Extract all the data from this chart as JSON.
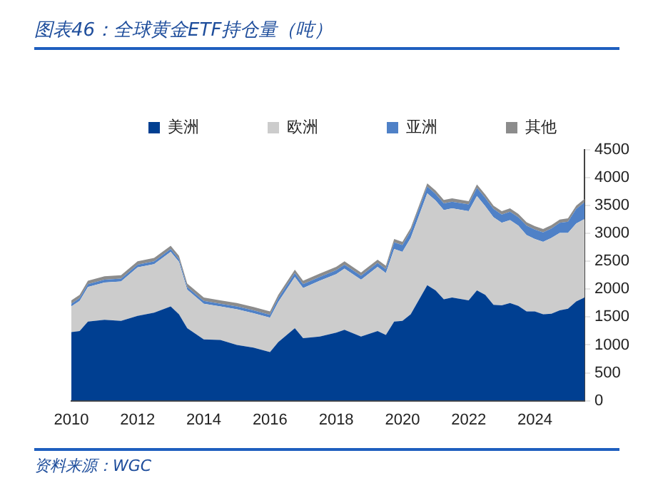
{
  "chart_data": {
    "type": "area",
    "title": "图表46：全球黄金ETF持仓量（吨）",
    "annotations": [
      "资料来源：WGC"
    ],
    "stacked": true,
    "legend": "top",
    "grid": false,
    "x": [
      2010,
      2010.25,
      2010.5,
      2011,
      2011.5,
      2012,
      2012.5,
      2013,
      2013.25,
      2013.5,
      2014,
      2014.5,
      2015,
      2015.5,
      2016,
      2016.25,
      2016.75,
      2017,
      2017.5,
      2018,
      2018.25,
      2018.75,
      2019.25,
      2019.5,
      2019.75,
      2020,
      2020.25,
      2020.75,
      2021,
      2021.25,
      2021.5,
      2022,
      2022.25,
      2022.5,
      2022.75,
      2023,
      2023.25,
      2023.5,
      2023.75,
      2024,
      2024.25,
      2024.5,
      2024.75,
      2025,
      2025.25,
      2025.5
    ],
    "series": [
      {
        "name": "美洲",
        "color": "#003f91",
        "values": [
          1230,
          1250,
          1420,
          1450,
          1430,
          1520,
          1580,
          1690,
          1550,
          1300,
          1100,
          1090,
          1000,
          950,
          870,
          1050,
          1300,
          1120,
          1150,
          1220,
          1270,
          1150,
          1250,
          1180,
          1420,
          1430,
          1550,
          2070,
          1980,
          1820,
          1850,
          1800,
          1980,
          1900,
          1720,
          1710,
          1750,
          1700,
          1600,
          1600,
          1550,
          1560,
          1620,
          1650,
          1780,
          1850
        ]
      },
      {
        "name": "欧洲",
        "color": "#cccccc",
        "values": [
          460,
          540,
          620,
          670,
          710,
          870,
          870,
          980,
          940,
          690,
          640,
          600,
          640,
          620,
          620,
          720,
          920,
          900,
          1000,
          1050,
          1100,
          1020,
          1150,
          1110,
          1300,
          1240,
          1370,
          1650,
          1610,
          1600,
          1600,
          1600,
          1690,
          1590,
          1570,
          1480,
          1490,
          1440,
          1370,
          1300,
          1300,
          1360,
          1390,
          1360,
          1400,
          1410
        ]
      },
      {
        "name": "亚洲",
        "color": "#4f81c7",
        "values": [
          50,
          50,
          50,
          50,
          50,
          50,
          50,
          50,
          50,
          50,
          50,
          50,
          50,
          50,
          50,
          70,
          70,
          70,
          70,
          70,
          70,
          70,
          70,
          70,
          120,
          120,
          120,
          120,
          120,
          120,
          120,
          120,
          150,
          150,
          150,
          150,
          150,
          150,
          170,
          170,
          170,
          170,
          180,
          200,
          260,
          300
        ]
      },
      {
        "name": "其他",
        "color": "#8c8c8c",
        "values": [
          60,
          60,
          60,
          60,
          60,
          60,
          60,
          60,
          60,
          60,
          60,
          60,
          60,
          60,
          60,
          60,
          60,
          60,
          60,
          60,
          60,
          60,
          60,
          60,
          60,
          60,
          60,
          60,
          60,
          60,
          60,
          60,
          60,
          60,
          60,
          60,
          60,
          60,
          60,
          60,
          60,
          60,
          60,
          60,
          60,
          60
        ]
      }
    ],
    "xlim": [
      2010,
      2025.5
    ],
    "xticks": [
      2010,
      2012,
      2014,
      2016,
      2018,
      2020,
      2022,
      2024
    ],
    "ylim": [
      0,
      4500
    ],
    "yticks": [
      0,
      500,
      1000,
      1500,
      2000,
      2500,
      3000,
      3500,
      4000,
      4500
    ]
  }
}
